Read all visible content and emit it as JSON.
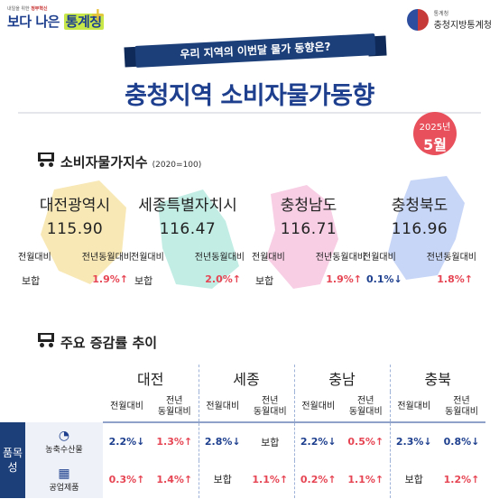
{
  "logo": {
    "tagline_prefix": "내일을 위한",
    "tagline_highlight": "정부혁신",
    "name_part1": "보다 나은",
    "name_part2": "통계청"
  },
  "agency": {
    "parent": "통계청",
    "name": "충청지방통계청"
  },
  "banner": "우리 지역의 이번달 물가 동향은?",
  "title": "충청지역 소비자물가동향",
  "period": {
    "year": "2025년",
    "month": "5월"
  },
  "cpi_section": {
    "title": "소비자물가지수",
    "base_note": "(2020=100)"
  },
  "columns": {
    "mom": "전월대비",
    "yoy": "전년동월대비",
    "yoy_line1": "전년",
    "yoy_line2": "동월대비"
  },
  "regions": [
    {
      "name": "대전광역시",
      "short": "대전",
      "index": "115.90",
      "mom": "보합",
      "mom_dir": "flat",
      "yoy": "1.9%↑",
      "yoy_dir": "up"
    },
    {
      "name": "세종특별자치시",
      "short": "세종",
      "index": "116.47",
      "mom": "보합",
      "mom_dir": "flat",
      "yoy": "2.0%↑",
      "yoy_dir": "up"
    },
    {
      "name": "충청남도",
      "short": "충남",
      "index": "116.71",
      "mom": "보합",
      "mom_dir": "flat",
      "yoy": "1.9%↑",
      "yoy_dir": "up"
    },
    {
      "name": "충청북도",
      "short": "충북",
      "index": "116.96",
      "mom": "0.1%↓",
      "mom_dir": "down",
      "yoy": "1.8%↑",
      "yoy_dir": "up"
    }
  ],
  "trend_section": {
    "title": "주요 증감률 추이"
  },
  "side_label": "품목성",
  "items": [
    {
      "name": "농축수산물",
      "icon": "piggy-bank-icon",
      "values": [
        "2.2%↓",
        "1.3%↑",
        "2.8%↓",
        "보합",
        "2.2%↓",
        "0.5%↑",
        "2.3%↓",
        "0.8%↓"
      ]
    },
    {
      "name": "공업제품",
      "icon": "factory-box-icon",
      "values": [
        "0.3%↑",
        "1.4%↑",
        "보합",
        "1.1%↑",
        "0.2%↑",
        "1.1%↑",
        "보합",
        "1.2%↑"
      ]
    }
  ],
  "colors": {
    "navy": "#1c3f7a",
    "up": "#e64553",
    "down": "#1d3f8e",
    "badge": "#e8505b"
  }
}
